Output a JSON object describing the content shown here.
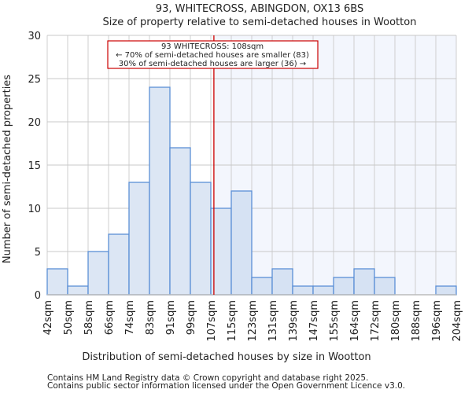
{
  "chart_data": {
    "type": "bar",
    "title": "93, WHITECROSS, ABINGDON, OX13 6BS",
    "subtitle": "Size of property relative to semi-detached houses in Wootton",
    "xlabel": "Distribution of semi-detached houses by size in Wootton",
    "ylabel": "Number of semi-detached properties",
    "bin_edges": [
      42,
      50,
      58,
      66,
      74,
      83,
      91,
      99,
      107,
      115,
      123,
      131,
      139,
      147,
      155,
      164,
      172,
      180,
      188,
      196,
      204
    ],
    "tick_labels": [
      "42sqm",
      "50sqm",
      "58sqm",
      "66sqm",
      "74sqm",
      "83sqm",
      "91sqm",
      "99sqm",
      "107sqm",
      "115sqm",
      "123sqm",
      "131sqm",
      "139sqm",
      "147sqm",
      "155sqm",
      "164sqm",
      "172sqm",
      "180sqm",
      "188sqm",
      "196sqm",
      "204sqm"
    ],
    "values": [
      3,
      1,
      5,
      7,
      13,
      24,
      17,
      13,
      10,
      12,
      2,
      3,
      1,
      1,
      2,
      3,
      2,
      0,
      0,
      1
    ],
    "ylim": [
      0,
      30
    ],
    "yticks": [
      0,
      5,
      10,
      15,
      20,
      25,
      30
    ],
    "grid": true,
    "marker": {
      "value_sqm": 108,
      "bin_position": 8.15,
      "color": "#cc0000"
    },
    "annotation": {
      "line1": "93 WHITECROSS: 108sqm",
      "line2": "← 70% of semi-detached houses are smaller (83)",
      "line3": "30% of semi-detached houses are larger (36) →"
    },
    "colors": {
      "bar_fill": "#dce6f4",
      "bar_fill_right": "#d6e2f3",
      "bar_edge": "#5b8fd6",
      "highlight_bg": "#f3f6fd"
    }
  },
  "footer": {
    "line1": "Contains HM Land Registry data © Crown copyright and database right 2025.",
    "line2": "Contains public sector information licensed under the Open Government Licence v3.0."
  }
}
